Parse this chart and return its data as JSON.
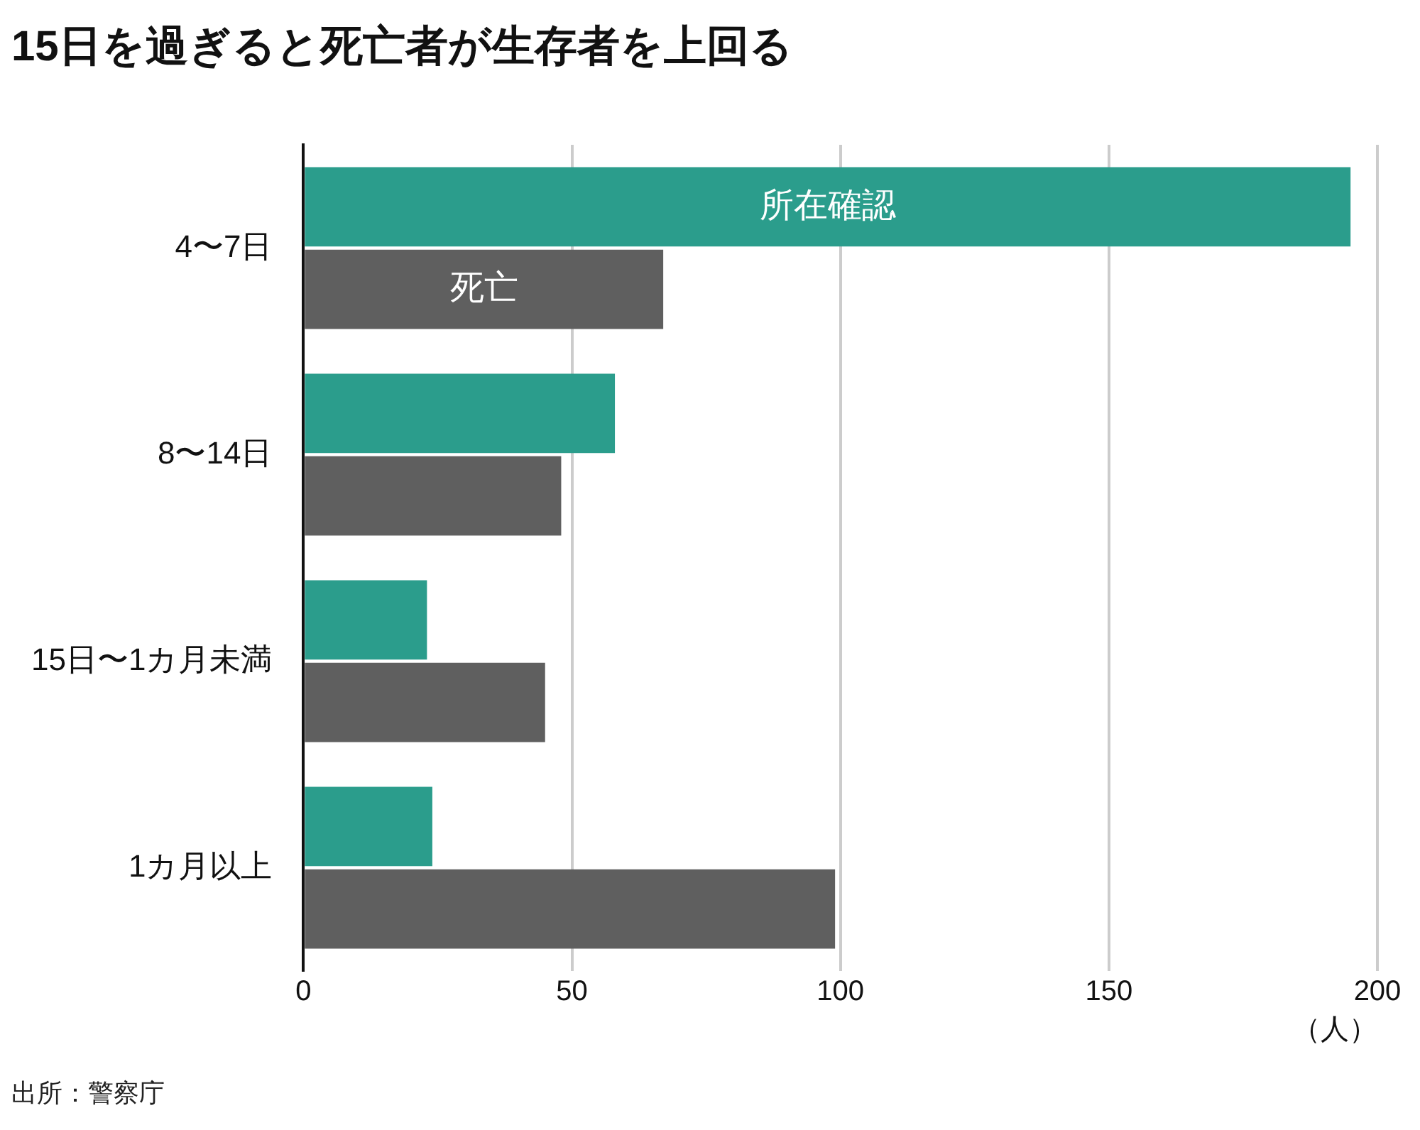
{
  "chart_data": {
    "type": "bar",
    "orientation": "horizontal",
    "title": "15日を過ぎると死亡者が生存者を上回る",
    "categories": [
      "4〜7日",
      "8〜14日",
      "15日〜1カ月未満",
      "1カ月以上"
    ],
    "series": [
      {
        "name": "所在確認",
        "color": "#2b9d8c",
        "values": [
          195,
          58,
          23,
          24
        ]
      },
      {
        "name": "死亡",
        "color": "#5f5f5f",
        "values": [
          67,
          48,
          45,
          99
        ]
      }
    ],
    "xlim": [
      0,
      200
    ],
    "xticks": [
      0,
      50,
      100,
      150,
      200
    ],
    "xlabel": "（人）",
    "grid": "x",
    "annotations": [
      "出所：警察庁"
    ]
  }
}
